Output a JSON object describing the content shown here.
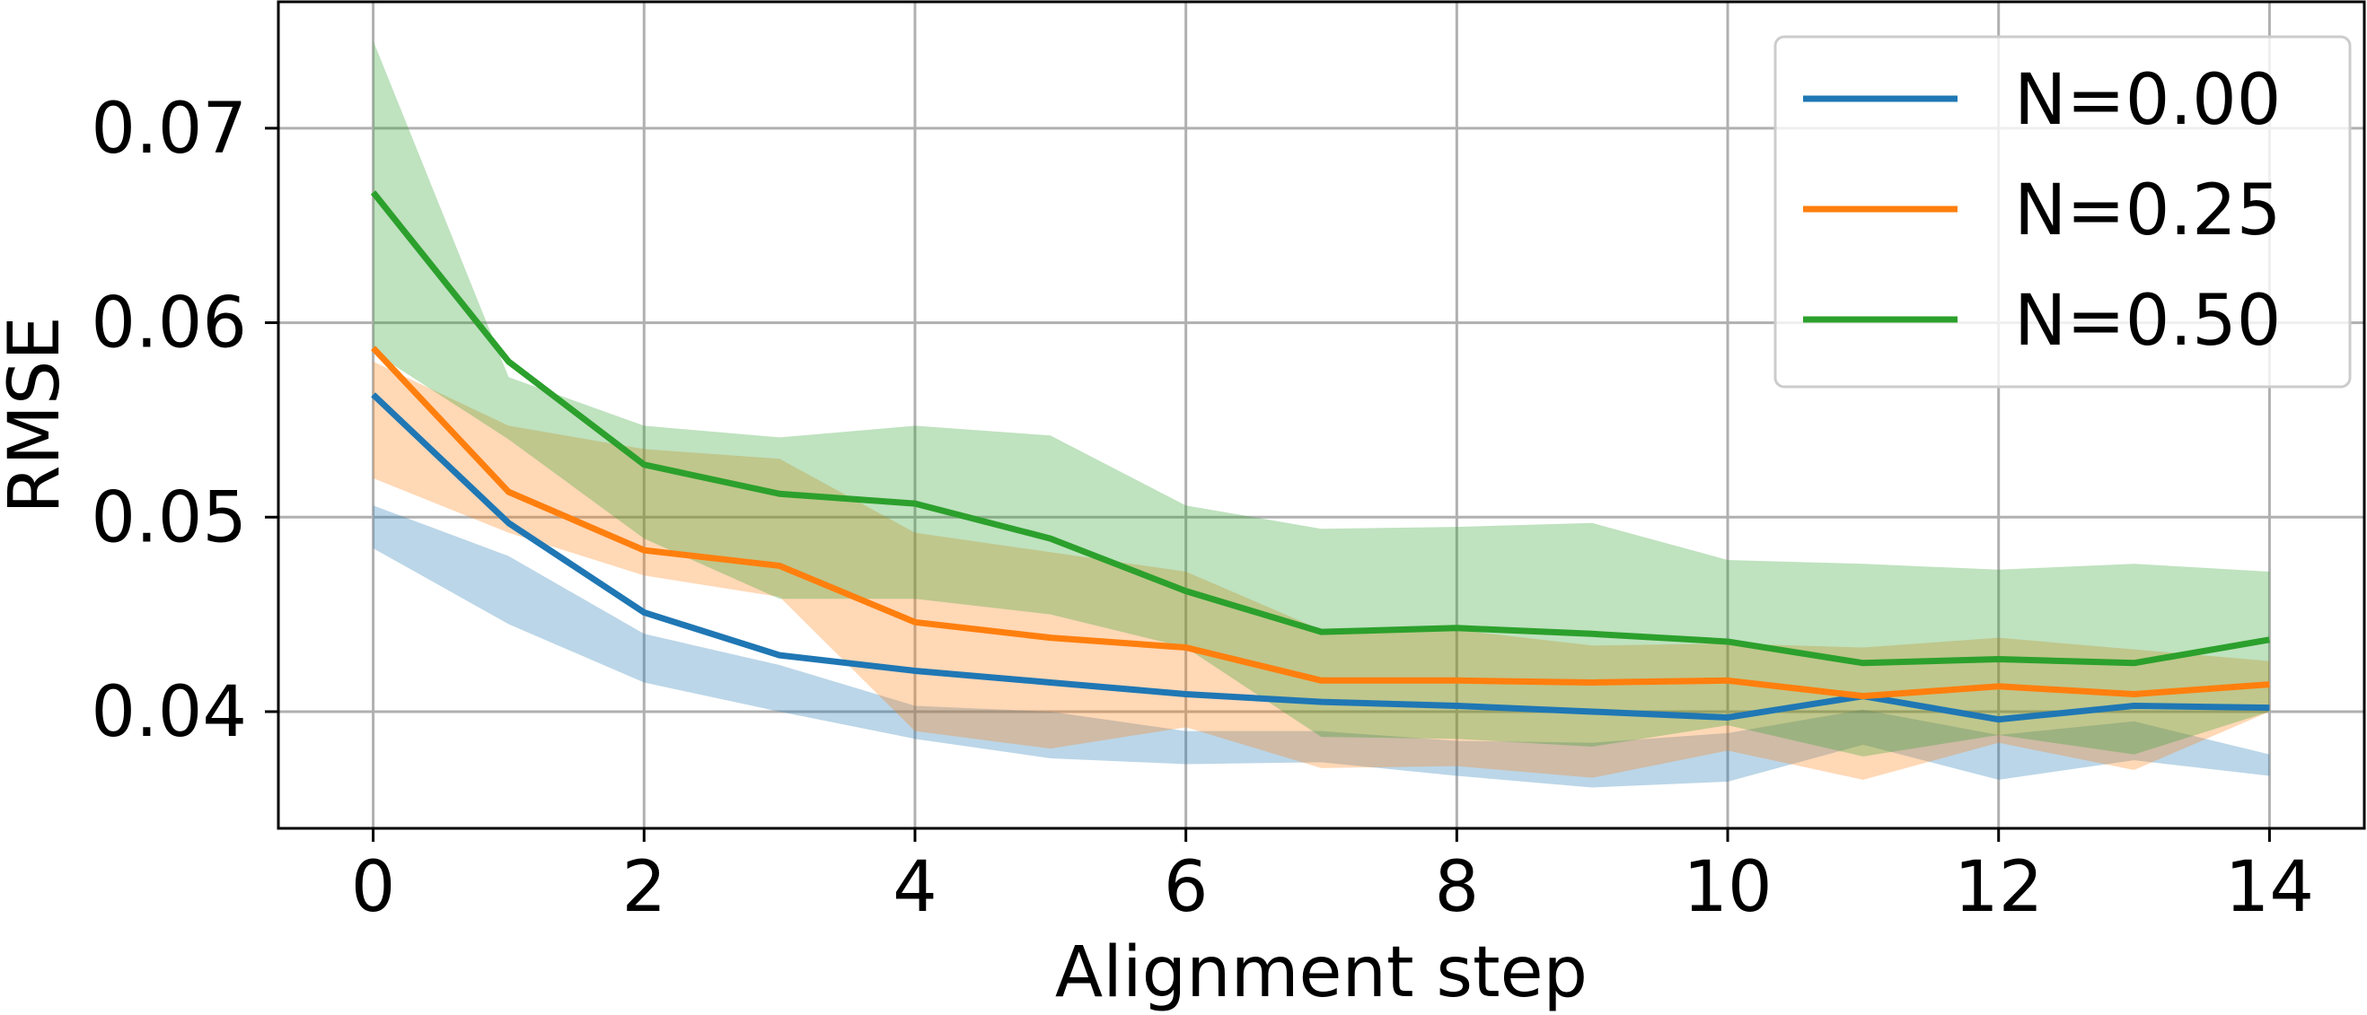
{
  "chart_data": {
    "type": "line",
    "xlabel": "Alignment step",
    "ylabel": "RMSE",
    "xlim": [
      -0.7,
      14.7
    ],
    "ylim": [
      0.034,
      0.0765
    ],
    "x_ticks": [
      0,
      2,
      4,
      6,
      8,
      10,
      12,
      14
    ],
    "x_tick_labels": [
      "0",
      "2",
      "4",
      "6",
      "8",
      "10",
      "12",
      "14"
    ],
    "y_ticks": [
      0.04,
      0.05,
      0.06,
      0.07
    ],
    "y_tick_labels": [
      "0.04",
      "0.05",
      "0.06",
      "0.07"
    ],
    "grid": true,
    "legend_position": "top-right",
    "x": [
      0,
      1,
      2,
      3,
      4,
      5,
      6,
      7,
      8,
      9,
      10,
      11,
      12,
      13,
      14
    ],
    "series": [
      {
        "name": "N=0.00",
        "color": "#1f77b4",
        "values": [
          0.0563,
          0.0497,
          0.0451,
          0.0429,
          0.0421,
          0.0415,
          0.0409,
          0.0405,
          0.0403,
          0.04,
          0.0397,
          0.0408,
          0.0396,
          0.0403,
          0.0402
        ],
        "lower": [
          0.0484,
          0.0445,
          0.0415,
          0.04,
          0.0386,
          0.0376,
          0.0373,
          0.0374,
          0.0367,
          0.0361,
          0.0364,
          0.0383,
          0.0365,
          0.0375,
          0.0367
        ],
        "upper": [
          0.0506,
          0.048,
          0.044,
          0.0424,
          0.0403,
          0.04,
          0.039,
          0.039,
          0.0385,
          0.0384,
          0.0389,
          0.0401,
          0.0388,
          0.0395,
          0.0378
        ]
      },
      {
        "name": "N=0.25",
        "color": "#ff7f0e",
        "values": [
          0.0587,
          0.0513,
          0.0483,
          0.0475,
          0.0446,
          0.0438,
          0.0433,
          0.0416,
          0.0416,
          0.0415,
          0.0416,
          0.0408,
          0.0413,
          0.0409,
          0.0414
        ],
        "lower": [
          0.052,
          0.0492,
          0.047,
          0.0459,
          0.039,
          0.0381,
          0.0392,
          0.0371,
          0.0372,
          0.0366,
          0.038,
          0.0365,
          0.0384,
          0.037,
          0.04
        ],
        "upper": [
          0.058,
          0.0547,
          0.0535,
          0.053,
          0.0492,
          0.0482,
          0.0472,
          0.0442,
          0.0442,
          0.0434,
          0.0435,
          0.0433,
          0.0438,
          0.0432,
          0.0426
        ]
      },
      {
        "name": "N=0.50",
        "color": "#2ca02c",
        "values": [
          0.0667,
          0.058,
          0.0527,
          0.0512,
          0.0507,
          0.0489,
          0.0462,
          0.0441,
          0.0443,
          0.044,
          0.0436,
          0.0425,
          0.0427,
          0.0425,
          0.0437
        ],
        "lower": [
          0.0585,
          0.054,
          0.0489,
          0.0458,
          0.0458,
          0.045,
          0.0433,
          0.0387,
          0.0386,
          0.0382,
          0.0393,
          0.0377,
          0.0388,
          0.0378,
          0.04
        ],
        "upper": [
          0.0745,
          0.0572,
          0.0547,
          0.0541,
          0.0547,
          0.0542,
          0.0506,
          0.0494,
          0.0495,
          0.0497,
          0.0478,
          0.0476,
          0.0473,
          0.0476,
          0.0472
        ]
      }
    ]
  }
}
